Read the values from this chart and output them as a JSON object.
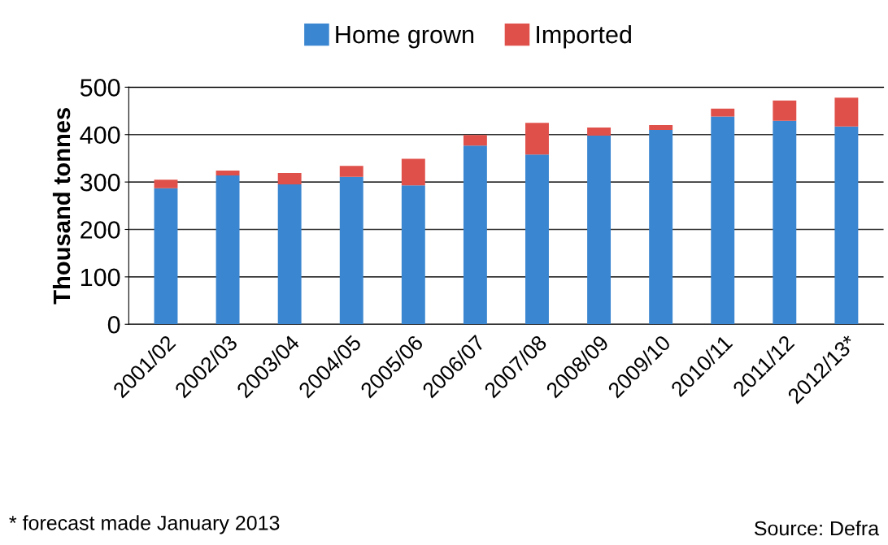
{
  "chart_data": {
    "type": "bar",
    "stacked": true,
    "ylabel": "Thousand tonnes",
    "categories": [
      "2001/02",
      "2002/03",
      "2003/04",
      "2004/05",
      "2005/06",
      "2006/07",
      "2007/08",
      "2008/09",
      "2009/10",
      "2010/11",
      "2011/12",
      "2012/13*"
    ],
    "series": [
      {
        "name": "Home grown",
        "color": "#3a86d0",
        "values": [
          287,
          314,
          295,
          311,
          293,
          377,
          358,
          398,
          410,
          438,
          429,
          417
        ]
      },
      {
        "name": "Imported",
        "color": "#e0504a",
        "values": [
          18,
          10,
          24,
          23,
          56,
          22,
          67,
          17,
          10,
          17,
          43,
          61
        ]
      }
    ],
    "ylim": [
      0,
      500
    ],
    "yticks": [
      0,
      100,
      200,
      300,
      400,
      500
    ],
    "grid": "y",
    "legend": "top",
    "annotations": [
      "* forecast made January 2013",
      "Source: Defra"
    ]
  }
}
